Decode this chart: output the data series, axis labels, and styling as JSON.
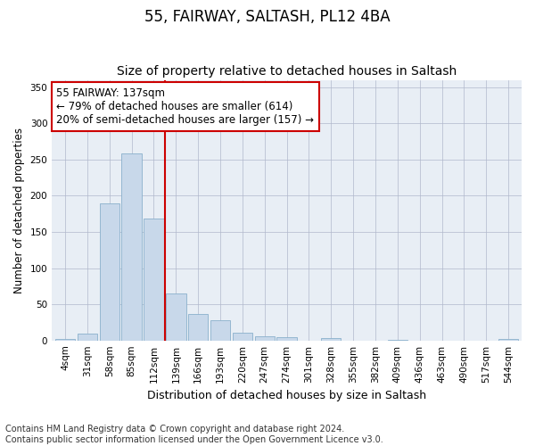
{
  "title": "55, FAIRWAY, SALTASH, PL12 4BA",
  "subtitle": "Size of property relative to detached houses in Saltash",
  "xlabel": "Distribution of detached houses by size in Saltash",
  "ylabel": "Number of detached properties",
  "bar_labels": [
    "4sqm",
    "31sqm",
    "58sqm",
    "85sqm",
    "112sqm",
    "139sqm",
    "166sqm",
    "193sqm",
    "220sqm",
    "247sqm",
    "274sqm",
    "301sqm",
    "328sqm",
    "355sqm",
    "382sqm",
    "409sqm",
    "436sqm",
    "463sqm",
    "490sqm",
    "517sqm",
    "544sqm"
  ],
  "bar_values": [
    2,
    9,
    190,
    258,
    168,
    65,
    37,
    28,
    11,
    6,
    4,
    0,
    3,
    0,
    0,
    1,
    0,
    0,
    0,
    0,
    2
  ],
  "bar_color": "#c8d8ea",
  "bar_edge_color": "#8ab0cc",
  "vline_color": "#cc0000",
  "annotation_line1": "55 FAIRWAY: 137sqm",
  "annotation_line2": "← 79% of detached houses are smaller (614)",
  "annotation_line3": "20% of semi-detached houses are larger (157) →",
  "annotation_box_color": "#ffffff",
  "annotation_box_edge": "#cc0000",
  "ylim": [
    0,
    360
  ],
  "yticks": [
    0,
    50,
    100,
    150,
    200,
    250,
    300,
    350
  ],
  "plot_bg_color": "#e8eef5",
  "grid_color": "#b0b8cc",
  "footer_text": "Contains HM Land Registry data © Crown copyright and database right 2024.\nContains public sector information licensed under the Open Government Licence v3.0.",
  "title_fontsize": 12,
  "subtitle_fontsize": 10,
  "xlabel_fontsize": 9,
  "ylabel_fontsize": 8.5,
  "tick_fontsize": 7.5,
  "annotation_fontsize": 8.5,
  "footer_fontsize": 7
}
